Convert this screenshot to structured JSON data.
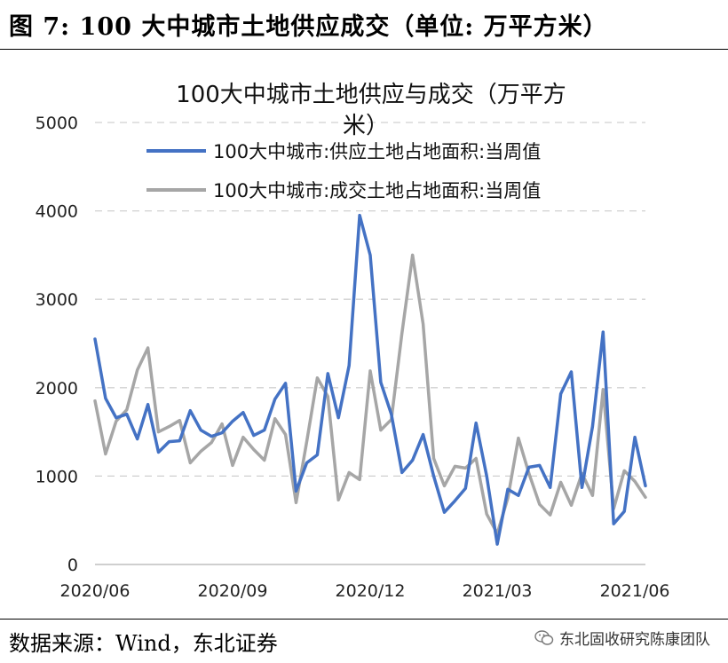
{
  "figure": {
    "header": "图 7: 100 大中城市土地供应成交（单位: 万平方米）",
    "source": "数据来源：Wind，东北证券",
    "watermark": "东北固收研究陈康团队"
  },
  "colors": {
    "supply": "#4472C4",
    "transaction": "#A6A6A6",
    "grid": "#D0D0D0"
  },
  "chart_data": {
    "type": "line",
    "title_line1": "100大中城市土地供应与成交（万平方",
    "title_line2": "米）",
    "ylim": [
      0,
      5000
    ],
    "yticks": [
      "0",
      "1000",
      "2000",
      "3000",
      "4000",
      "5000"
    ],
    "xtick_labels": [
      "2020/06",
      "2020/09",
      "2020/12",
      "2021/03",
      "2021/06"
    ],
    "xtick_positions": [
      0,
      13,
      26,
      38,
      51
    ],
    "grid": "horizontal-dashed",
    "legend_position": "top-right",
    "series": [
      {
        "name": "100大中城市:供应土地占地面积:当周值",
        "values": [
          2550,
          1880,
          1660,
          1700,
          1420,
          1810,
          1270,
          1390,
          1400,
          1740,
          1520,
          1450,
          1490,
          1620,
          1720,
          1460,
          1520,
          1870,
          2050,
          830,
          1150,
          1240,
          2160,
          1660,
          2250,
          3950,
          3500,
          2060,
          1700,
          1040,
          1180,
          1470,
          1000,
          590,
          720,
          860,
          1600,
          1000,
          230,
          850,
          780,
          1100,
          1120,
          870,
          1930,
          2180,
          870,
          1560,
          2630,
          460,
          600,
          1440,
          890
        ]
      },
      {
        "name": "100大中城市:成交土地占地面积:当周值",
        "values": [
          1850,
          1250,
          1620,
          1750,
          2200,
          2450,
          1500,
          1560,
          1630,
          1150,
          1280,
          1380,
          1590,
          1120,
          1440,
          1300,
          1180,
          1650,
          1470,
          700,
          1390,
          2110,
          1900,
          730,
          1040,
          960,
          2190,
          1520,
          1640,
          2620,
          3500,
          2720,
          1200,
          890,
          1110,
          1090,
          1200,
          570,
          350,
          750,
          1430,
          1030,
          680,
          560,
          930,
          670,
          1030,
          780,
          1980,
          630,
          1060,
          940,
          760
        ]
      }
    ]
  }
}
